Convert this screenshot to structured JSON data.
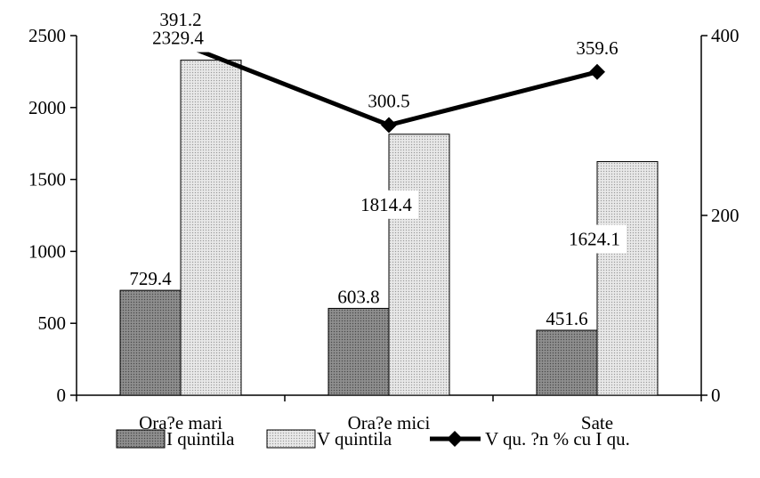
{
  "chart_data": {
    "type": "bar",
    "title": "",
    "categories": [
      "Ora?e mari",
      "Ora?e mici",
      "Sate"
    ],
    "series": [
      {
        "name": "I quintila",
        "type": "bar",
        "axis": "left",
        "values": [
          729.4,
          603.8,
          451.6
        ],
        "value_labels": [
          "729.4",
          "603.8",
          "451.6"
        ],
        "pattern": "dark-dotted",
        "color": "#7a7a7a"
      },
      {
        "name": "V quintila",
        "type": "bar",
        "axis": "left",
        "values": [
          2329.4,
          1814.4,
          1624.1
        ],
        "value_labels": [
          "2329.4",
          "1814.4",
          "1624.1"
        ],
        "pattern": "light-dotted",
        "color": "#d4d4d4"
      },
      {
        "name": "V qu. ?n % cu I qu.",
        "type": "line",
        "axis": "right",
        "values": [
          391.2,
          300.5,
          359.6
        ],
        "value_labels": [
          "391.2",
          "300.5",
          "359.6"
        ],
        "marker": "diamond",
        "color": "#000000"
      }
    ],
    "y_left": {
      "ylim": [
        0,
        2500
      ],
      "ticks": [
        "0",
        "500",
        "1000",
        "1500",
        "2000",
        "2500"
      ]
    },
    "y_right": {
      "ylim": [
        0,
        400
      ],
      "ticks": [
        "0",
        "200",
        "400"
      ]
    },
    "grid": false,
    "legend_position": "bottom"
  }
}
